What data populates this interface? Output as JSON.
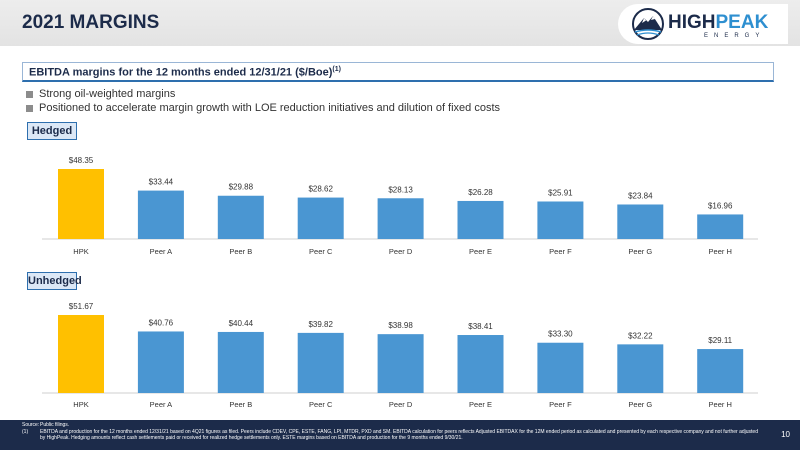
{
  "page": {
    "title": "2021 MARGINS",
    "number": "10"
  },
  "logo": {
    "high": "HIGH",
    "peak": "PEAK",
    "sub": "ENERGY"
  },
  "subtitle": {
    "text": "EBITDA margins for the 12 months ended 12/31/21 ($/Boe)",
    "sup": "(1)"
  },
  "bullets": [
    "Strong oil-weighted margins",
    "Positioned to accelerate margin growth with LOE reduction initiatives and dilution of fixed costs"
  ],
  "colors": {
    "highlight": "#FFC000",
    "peer": "#4A96D2",
    "navy": "#1C2B4A"
  },
  "chart_data": [
    {
      "type": "bar",
      "title": "Hedged",
      "categories": [
        "HPK",
        "Peer A",
        "Peer B",
        "Peer C",
        "Peer D",
        "Peer E",
        "Peer F",
        "Peer G",
        "Peer H"
      ],
      "values": [
        48.35,
        33.44,
        29.88,
        28.62,
        28.13,
        26.28,
        25.91,
        23.84,
        16.96
      ],
      "labels": [
        "$48.35",
        "$33.44",
        "$29.88",
        "$28.62",
        "$28.13",
        "$26.28",
        "$25.91",
        "$23.84",
        "$16.96"
      ],
      "highlight_index": 0,
      "grid": false
    },
    {
      "type": "bar",
      "title": "Unhedged",
      "categories": [
        "HPK",
        "Peer A",
        "Peer B",
        "Peer C",
        "Peer D",
        "Peer E",
        "Peer F",
        "Peer G",
        "Peer H"
      ],
      "values": [
        51.67,
        40.76,
        40.44,
        39.82,
        38.98,
        38.41,
        33.3,
        32.22,
        29.11
      ],
      "labels": [
        "$51.67",
        "$40.76",
        "$40.44",
        "$39.82",
        "$38.98",
        "$38.41",
        "$33.30",
        "$32.22",
        "$29.11"
      ],
      "highlight_index": 0,
      "grid": false
    }
  ],
  "footnotes": [
    {
      "key": "Source:",
      "text": "Public filings."
    },
    {
      "key": "(1)",
      "text": "EBITDA and production for the 12 months ended 12/31/21 based on 4Q21 figures as filed. Peers include CDEV, CPE, ESTE, FANG, LPI, MTDR, PXD and SM. EBITDA calculation for peers reflects Adjusted EBITDAX for the 12M ended period as calculated and presented by each respective company and not further adjusted by HighPeak. Hedging amounts reflect cash settlements paid or received for realized hedge settlements only. ESTE margins based on EBITDA and production for the 9 months ended 9/30/21."
    }
  ]
}
